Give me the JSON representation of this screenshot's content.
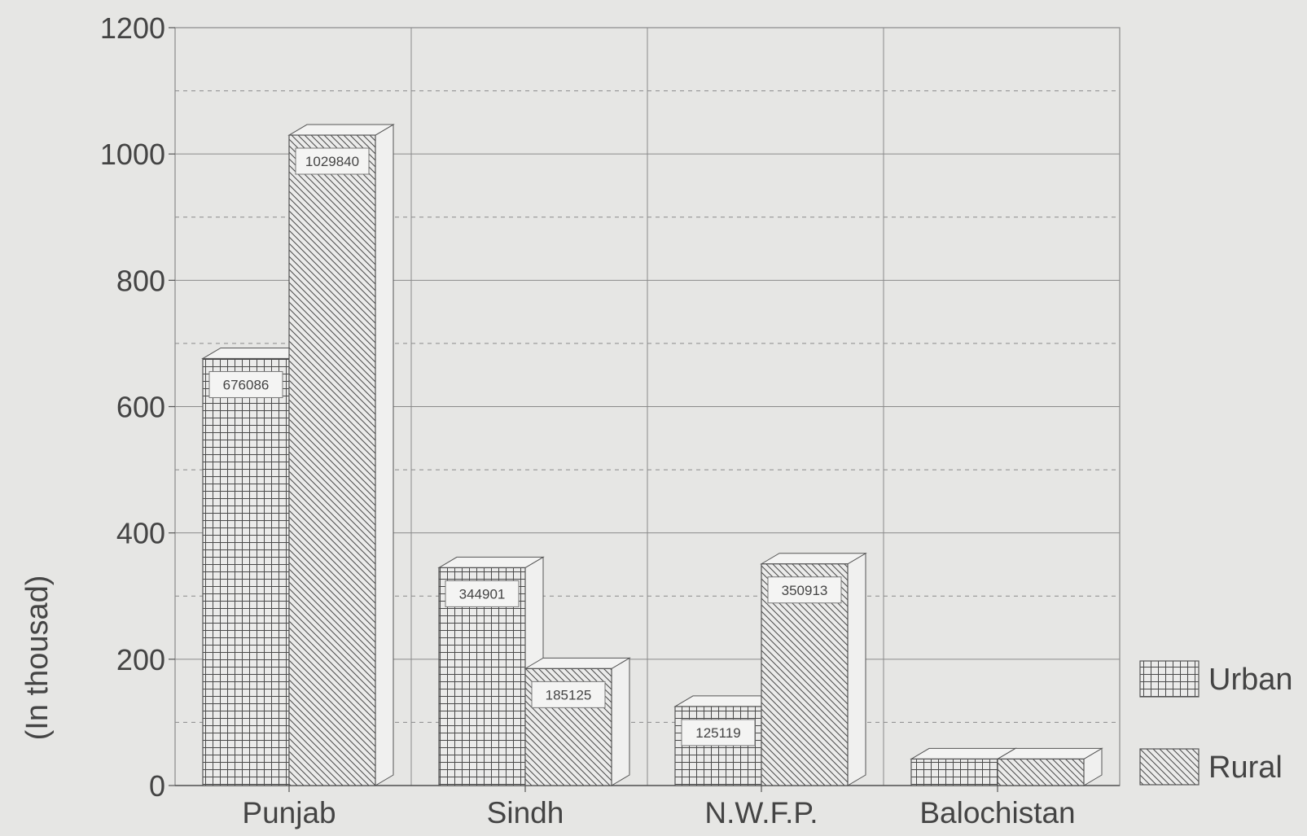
{
  "chart_data": {
    "type": "bar",
    "title": "",
    "xlabel": "",
    "ylabel": "(In thousad)",
    "categories": [
      "Punjab",
      "Sindh",
      "N.W.F.P.",
      "Balochistan"
    ],
    "series": [
      {
        "name": "Urban",
        "values": [
          676086,
          344901,
          125119,
          42000
        ],
        "labels": [
          "676086",
          "344901",
          "125119",
          ""
        ]
      },
      {
        "name": "Rural",
        "values": [
          1029840,
          185125,
          350913,
          42000
        ],
        "labels": [
          "1029840",
          "185125",
          "350913",
          ""
        ]
      }
    ],
    "value_scale": 1000,
    "y_ticks": [
      "0",
      "200",
      "400",
      "600",
      "800",
      "1000",
      "1200"
    ],
    "ylim": [
      0,
      1200
    ],
    "grid": true,
    "legend_position": "right",
    "bar_style": "3d-hatched",
    "colors": {
      "background": "#e6e6e4",
      "line": "#555555",
      "grid": "#8a8a8a",
      "text": "#444444"
    }
  }
}
